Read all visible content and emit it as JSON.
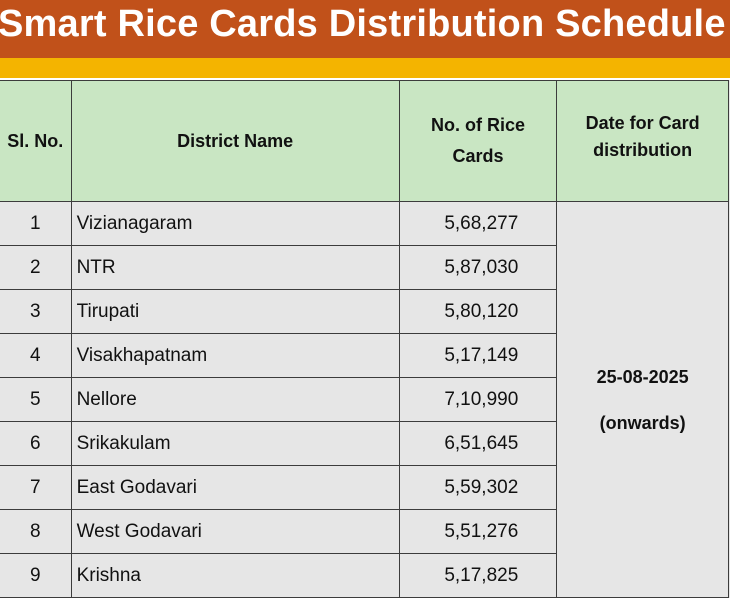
{
  "title": "Smart Rice Cards Distribution Schedule",
  "colors": {
    "title_bg": "#c1511a",
    "accent_band": "#f4b400",
    "header_bg": "#c9e6c3",
    "body_bg": "#e6e6e6"
  },
  "table": {
    "headers": {
      "sl": "Sl. No.",
      "district": "District Name",
      "cards": "No. of Rice Cards",
      "date": "Date for Card distribution"
    },
    "rows": [
      {
        "sl": "1",
        "district": "Vizianagaram",
        "cards": "5,68,277"
      },
      {
        "sl": "2",
        "district": "NTR",
        "cards": "5,87,030"
      },
      {
        "sl": "3",
        "district": "Tirupati",
        "cards": "5,80,120"
      },
      {
        "sl": "4",
        "district": "Visakhapatnam",
        "cards": "5,17,149"
      },
      {
        "sl": "5",
        "district": "Nellore",
        "cards": "7,10,990"
      },
      {
        "sl": "6",
        "district": "Srikakulam",
        "cards": "6,51,645"
      },
      {
        "sl": "7",
        "district": "East Godavari",
        "cards": "5,59,302"
      },
      {
        "sl": "8",
        "district": "West Godavari",
        "cards": "5,51,276"
      },
      {
        "sl": "9",
        "district": "Krishna",
        "cards": "5,17,825"
      }
    ],
    "distribution_date": "25-08-2025",
    "distribution_note": "(onwards)"
  }
}
